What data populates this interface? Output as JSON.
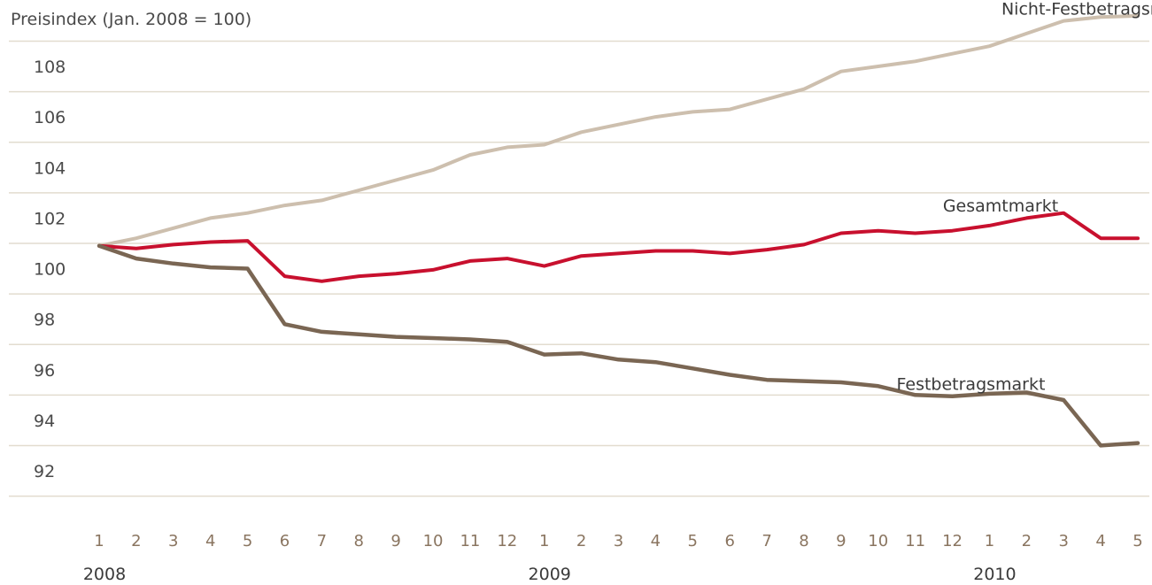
{
  "chart_data": {
    "type": "line",
    "ylabel": "Preisindex (Jan. 2008 = 100)",
    "ylim": [
      91,
      109
    ],
    "yticks": [
      92,
      94,
      96,
      98,
      100,
      102,
      104,
      106,
      108
    ],
    "x": [
      "1",
      "2",
      "3",
      "4",
      "5",
      "6",
      "7",
      "8",
      "9",
      "10",
      "11",
      "12",
      "1",
      "2",
      "3",
      "4",
      "5",
      "6",
      "7",
      "8",
      "9",
      "10",
      "11",
      "12",
      "1",
      "2",
      "3",
      "4",
      "5"
    ],
    "years": [
      {
        "label": "2008",
        "index": 0
      },
      {
        "label": "2009",
        "index": 12
      },
      {
        "label": "2010",
        "index": 24
      }
    ],
    "grid": true,
    "series": [
      {
        "name": "Nicht-Festbetragsmarkt",
        "color": "#cdbfae",
        "values": [
          100.9,
          101.2,
          101.6,
          102.0,
          102.2,
          102.5,
          102.7,
          103.1,
          103.5,
          103.9,
          104.5,
          104.8,
          104.9,
          105.4,
          105.7,
          106.0,
          106.2,
          106.3,
          106.7,
          107.1,
          107.8,
          108.0,
          108.2,
          108.5,
          108.8,
          109.3,
          109.8,
          109.95,
          110.0
        ],
        "label_anchor": {
          "index": 27,
          "value": 110.05
        }
      },
      {
        "name": "Gesamtmarkt",
        "color": "#c8102e",
        "values": [
          100.9,
          100.8,
          100.95,
          101.05,
          101.1,
          99.7,
          99.5,
          99.7,
          99.8,
          99.95,
          100.3,
          100.4,
          100.1,
          100.5,
          100.6,
          100.7,
          100.7,
          100.6,
          100.75,
          100.95,
          101.4,
          101.5,
          101.4,
          101.5,
          101.7,
          102.0,
          102.2,
          101.2,
          101.2
        ],
        "label_anchor": {
          "index": 24.3,
          "value": 102.25
        }
      },
      {
        "name": "Festbetragsmarkt",
        "color": "#7a6653",
        "values": [
          100.9,
          100.4,
          100.2,
          100.05,
          100.0,
          97.8,
          97.5,
          97.4,
          97.3,
          97.25,
          97.2,
          97.1,
          96.6,
          96.65,
          96.4,
          96.3,
          96.05,
          95.8,
          95.6,
          95.55,
          95.5,
          95.35,
          95.0,
          94.95,
          95.05,
          95.1,
          94.8,
          93.0,
          93.1
        ],
        "label_anchor": {
          "index": 23.5,
          "value": 95.2
        }
      }
    ]
  }
}
